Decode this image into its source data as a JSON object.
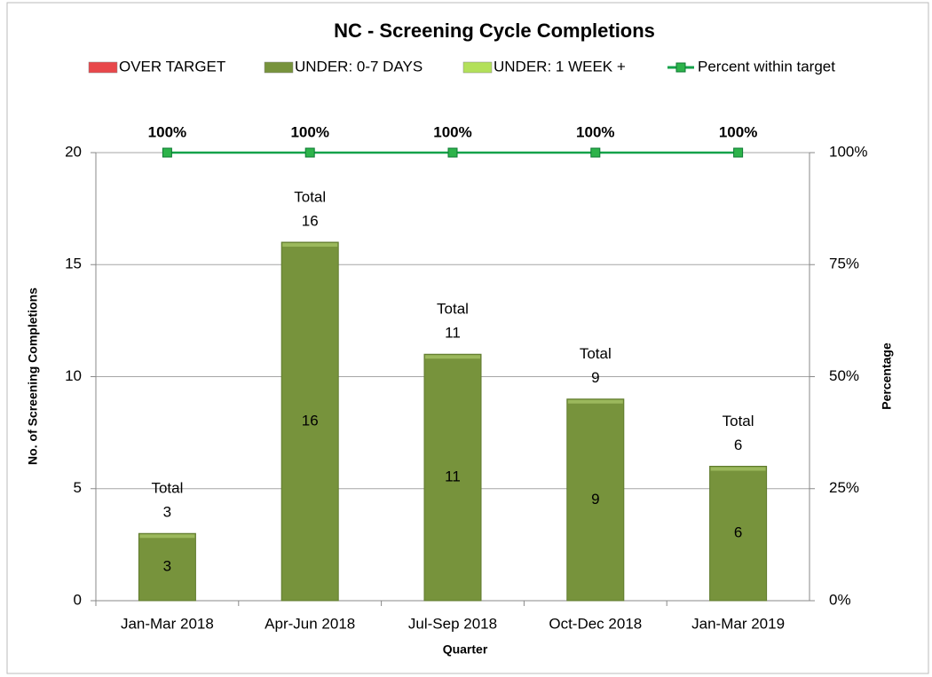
{
  "chart_data": {
    "type": "bar",
    "title": "NC - Screening Cycle Completions",
    "x_label": "Quarter",
    "y_label": "No. of Screening Completions",
    "y2_label": "Percentage",
    "categories": [
      "Jan-Mar 2018",
      "Apr-Jun 2018",
      "Jul-Sep 2018",
      "Oct-Dec 2018",
      "Jan-Mar 2019"
    ],
    "series": [
      {
        "name": "OVER TARGET",
        "color": "#e8474a",
        "values": [
          0,
          0,
          0,
          0,
          0
        ]
      },
      {
        "name": "UNDER: 0-7 DAYS",
        "color": "#77933c",
        "values": [
          3,
          16,
          11,
          9,
          6
        ]
      },
      {
        "name": "UNDER: 1 WEEK +",
        "color": "#b3e05a",
        "values": [
          0,
          0,
          0,
          0,
          0
        ]
      },
      {
        "name": "Percent within target",
        "type": "line",
        "axis": "y2",
        "color": "#15a24a",
        "values": [
          100,
          100,
          100,
          100,
          100
        ],
        "value_labels": [
          "100%",
          "100%",
          "100%",
          "100%",
          "100%"
        ]
      }
    ],
    "totals": {
      "label": "Total",
      "values": [
        3,
        16,
        11,
        9,
        6
      ]
    },
    "ylim": [
      0,
      20
    ],
    "yticks": [
      0,
      5,
      10,
      15,
      20
    ],
    "y2lim": [
      0,
      100
    ],
    "y2ticks": [
      {
        "value": 0,
        "label": "0%"
      },
      {
        "value": 25,
        "label": "25%"
      },
      {
        "value": 50,
        "label": "50%"
      },
      {
        "value": 75,
        "label": "75%"
      },
      {
        "value": 100,
        "label": "100%"
      }
    ],
    "grid": true,
    "legend": "top"
  }
}
